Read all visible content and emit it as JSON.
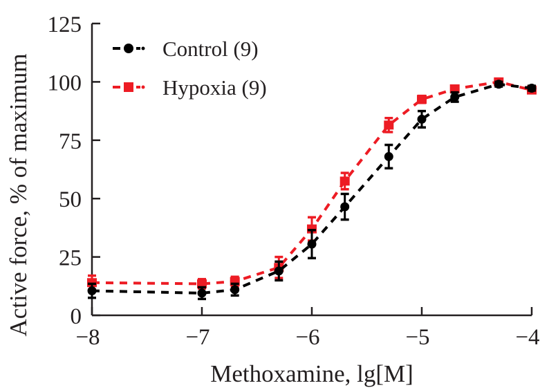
{
  "chart_data": {
    "type": "line",
    "title": "",
    "xlabel": "Methoxamine, lg[M]",
    "ylabel": "Active force, % of maximum",
    "xlim": [
      -8,
      -4
    ],
    "ylim": [
      0,
      125
    ],
    "xticks": [
      -8,
      -7,
      -6,
      -5,
      -4
    ],
    "xtick_labels": [
      "−8",
      "−7",
      "−6",
      "−5",
      "−4"
    ],
    "yticks": [
      0,
      25,
      50,
      75,
      100,
      125
    ],
    "ytick_labels": [
      "0",
      "25",
      "50",
      "75",
      "100",
      "125"
    ],
    "grid": false,
    "legend_position": "top-left",
    "x": [
      -8,
      -7,
      -6.7,
      -6.3,
      -6,
      -5.7,
      -5.3,
      -5,
      -4.7,
      -4.3,
      -4
    ],
    "series": [
      {
        "name": "Control (9)",
        "color": "#000000",
        "marker": "circle",
        "line_style": "dashed",
        "values": [
          10.5,
          9.5,
          11,
          19,
          30.5,
          46.5,
          68,
          84,
          93.5,
          99,
          97.3
        ],
        "errors": [
          3,
          2.5,
          2.5,
          4,
          6,
          5.5,
          5,
          3.5,
          2,
          1,
          1
        ]
      },
      {
        "name": "Hypoxia (9)",
        "color": "#ed1c24",
        "marker": "square",
        "line_style": "dashed",
        "values": [
          14,
          13.5,
          14.5,
          20.5,
          37,
          57.5,
          81.5,
          92.5,
          97,
          100,
          96.5
        ],
        "errors": [
          3,
          2,
          2,
          4.5,
          5,
          3.5,
          3,
          1.5,
          1,
          1,
          1
        ]
      }
    ]
  }
}
